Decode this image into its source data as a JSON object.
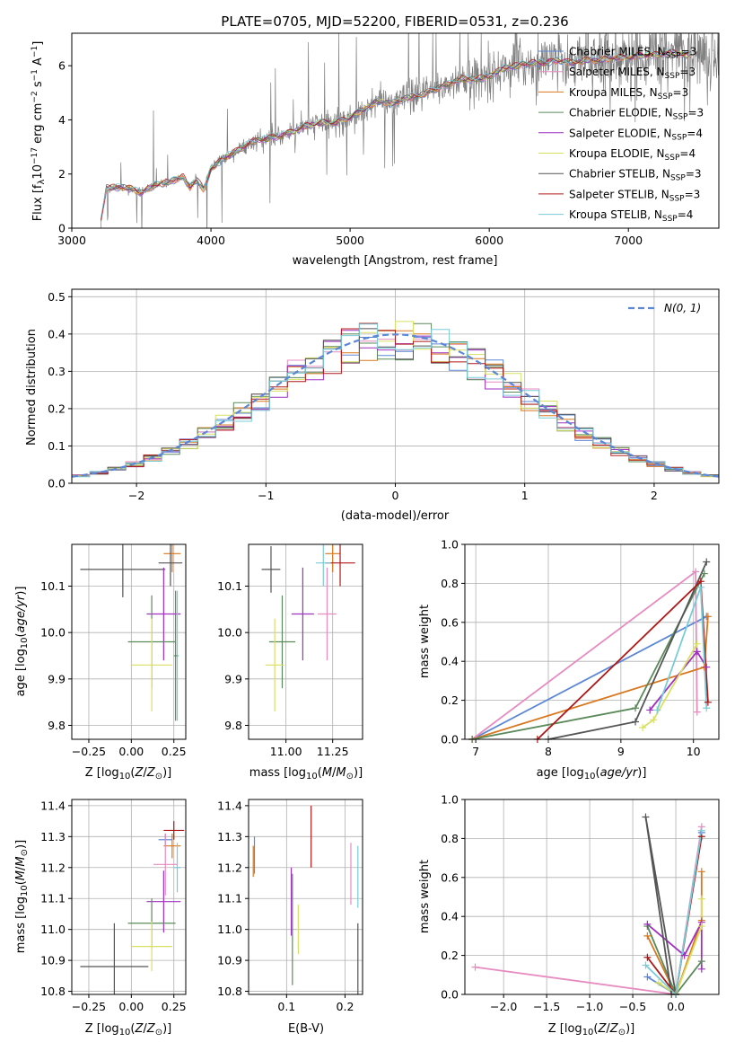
{
  "colors": {
    "chabrier_miles": "#5b87d6",
    "salpeter_miles": "#e68cc0",
    "kroupa_miles": "#d9781e",
    "chabrier_elodie": "#5a8a5a",
    "salpeter_elodie": "#a030c0",
    "kroupa_elodie": "#d8e060",
    "chabrier_stelib": "#555555",
    "salpeter_stelib": "#b01818",
    "kroupa_stelib": "#78ccd8",
    "data": "#7f7f7f",
    "normal": "#5b87d6",
    "grid": "#b0b0b0"
  },
  "chart_data": [
    {
      "id": "spectrum",
      "type": "line",
      "title": "PLATE=0705, MJD=52200, FIBERID=0531, z=0.236",
      "xlabel": "wavelength [Angstrom, rest frame]",
      "ylabel": "Flux [f_λ 10^-17 erg cm^-2 s^-1 A^-1]",
      "xlim": [
        3000,
        7650
      ],
      "ylim": [
        0,
        7.2
      ],
      "xticks": [
        3000,
        4000,
        5000,
        6000,
        7000
      ],
      "yticks": [
        0,
        2,
        4,
        6
      ],
      "grid": false,
      "legend_position": "top-right",
      "legend": [
        "Chabrier MILES, N_SSP=3",
        "Salpeter MILES, N_SSP=3",
        "Kroupa MILES, N_SSP=3",
        "Chabrier ELODIE, N_SSP=3",
        "Salpeter ELODIE, N_SSP=4",
        "Kroupa ELODIE, N_SSP=4",
        "Chabrier STELIB, N_SSP=3",
        "Salpeter STELIB, N_SSP=3",
        "Kroupa STELIB, N_SSP=4"
      ],
      "model_continuum": {
        "x": [
          3200,
          3250,
          3300,
          3400,
          3500,
          3600,
          3700,
          3800,
          3850,
          3900,
          3950,
          4000,
          4100,
          4200,
          4300,
          4400,
          4500,
          4600,
          4700,
          4800,
          4900,
          5000,
          5100,
          5200,
          5300,
          5400,
          5500,
          5600,
          5700,
          5800,
          5900,
          6000,
          6100,
          6200,
          6300,
          6400,
          6500,
          6600,
          6700,
          6800,
          6900,
          7000,
          7100,
          7200,
          7300,
          7400
        ],
        "y": [
          0.0,
          1.5,
          1.5,
          1.5,
          1.3,
          1.6,
          1.7,
          1.9,
          1.5,
          1.8,
          1.4,
          2.2,
          2.6,
          2.9,
          3.2,
          3.3,
          3.4,
          3.6,
          3.8,
          3.9,
          3.9,
          4.1,
          4.4,
          4.7,
          4.6,
          4.8,
          4.9,
          5.1,
          5.3,
          5.5,
          5.5,
          5.6,
          5.9,
          6.0,
          6.1,
          6.1,
          6.2,
          6.1,
          6.2,
          6.2,
          6.3,
          6.3,
          6.4,
          6.4,
          6.5,
          6.4
        ]
      },
      "data_range": [
        3200,
        7650
      ]
    },
    {
      "id": "residuals",
      "type": "histogram",
      "xlabel": "(data-model)/error",
      "ylabel": "Normed distribution",
      "xlim": [
        -2.5,
        2.5
      ],
      "ylim": [
        0,
        0.52
      ],
      "xticks": [
        -2,
        -1,
        0,
        1,
        2
      ],
      "yticks": [
        0.0,
        0.1,
        0.2,
        0.3,
        0.4,
        0.5
      ],
      "grid": true,
      "legend_position": "top-right",
      "legend": [
        "N(0,1)"
      ],
      "bins": 36
    },
    {
      "id": "age_vs_Z",
      "type": "scatter",
      "xlabel": "Z [log10(Z/Z⊙)]",
      "ylabel": "age [log10(age/yr)]",
      "xlim": [
        -0.35,
        0.32
      ],
      "ylim": [
        9.77,
        10.19
      ],
      "xticks": [
        -0.25,
        0.0,
        0.25
      ],
      "yticks": [
        9.8,
        9.9,
        10.0,
        10.1
      ],
      "grid": true,
      "points": [
        {
          "c": "chabrier_stelib",
          "x": -0.05,
          "y": 10.136,
          "xerr": 0.25,
          "yerr": 0.06
        },
        {
          "c": "kroupa_miles",
          "x": 0.24,
          "y": 10.17,
          "xerr": 0.05,
          "yerr": 0.04
        },
        {
          "c": "chabrier_stelib",
          "x": 0.23,
          "y": 10.15,
          "xerr": 0.07,
          "yerr": 0.05
        },
        {
          "c": "salpeter_elodie",
          "x": 0.19,
          "y": 10.04,
          "xerr": 0.1,
          "yerr": 0.1
        },
        {
          "c": "chabrier_elodie",
          "x": 0.12,
          "y": 9.98,
          "xerr": 0.14,
          "yerr": 0.1
        },
        {
          "c": "kroupa_elodie",
          "x": 0.12,
          "y": 9.93,
          "xerr": 0.12,
          "yerr": 0.1
        },
        {
          "c": "kroupa_stelib",
          "x": 0.27,
          "y": 9.95,
          "xerr": 0.01,
          "yerr": 0.14
        },
        {
          "c": "chabrier_elodie",
          "x": 0.26,
          "y": 9.95,
          "xerr": 0.01,
          "yerr": 0.14
        }
      ]
    },
    {
      "id": "age_vs_mass",
      "type": "scatter",
      "xlabel": "mass [log10(M/M⊙)]",
      "ylabel": "",
      "xlim": [
        10.8,
        11.41
      ],
      "ylim": [
        9.77,
        10.19
      ],
      "xticks": [
        11.0,
        11.25
      ],
      "yticks": [
        9.8,
        9.9,
        10.0,
        10.1
      ],
      "grid": true,
      "points": [
        {
          "c": "chabrier_stelib",
          "x": 10.92,
          "y": 10.136,
          "xerr": 0.05,
          "yerr": 0.05
        },
        {
          "c": "kroupa_miles",
          "x": 11.25,
          "y": 10.17,
          "xerr": 0.04,
          "yerr": 0.04
        },
        {
          "c": "salpeter_stelib",
          "x": 11.29,
          "y": 10.15,
          "xerr": 0.08,
          "yerr": 0.05
        },
        {
          "c": "kroupa_stelib",
          "x": 11.2,
          "y": 10.15,
          "xerr": 0.04,
          "yerr": 0.05
        },
        {
          "c": "salpeter_miles",
          "x": 11.22,
          "y": 10.04,
          "xerr": 0.05,
          "yerr": 0.1
        },
        {
          "c": "salpeter_elodie",
          "x": 11.09,
          "y": 10.04,
          "xerr": 0.06,
          "yerr": 0.1
        },
        {
          "c": "chabrier_elodie",
          "x": 10.98,
          "y": 9.98,
          "xerr": 0.07,
          "yerr": 0.1
        },
        {
          "c": "kroupa_elodie",
          "x": 10.94,
          "y": 9.93,
          "xerr": 0.05,
          "yerr": 0.1
        }
      ]
    },
    {
      "id": "weight_vs_age",
      "type": "line",
      "xlabel": "age [log10(age/yr)]",
      "ylabel": "mass weight",
      "xlim": [
        6.85,
        10.35
      ],
      "ylim": [
        0,
        1
      ],
      "xticks": [
        7,
        8,
        9,
        10
      ],
      "yticks": [
        0.0,
        0.2,
        0.4,
        0.6,
        0.8,
        1.0
      ],
      "grid": true,
      "series": [
        {
          "c": "chabrier_miles",
          "x": [
            6.95,
            10.18
          ],
          "y": [
            0.0,
            0.63
          ]
        },
        {
          "c": "salpeter_miles",
          "x": [
            6.95,
            10.03,
            10.05
          ],
          "y": [
            0.0,
            0.86,
            0.14
          ]
        },
        {
          "c": "kroupa_miles",
          "x": [
            6.95,
            10.15,
            10.2
          ],
          "y": [
            0.0,
            0.37,
            0.63
          ]
        },
        {
          "c": "chabrier_elodie",
          "x": [
            6.95,
            9.2,
            10.15
          ],
          "y": [
            0.0,
            0.16,
            0.85
          ]
        },
        {
          "c": "salpeter_elodie",
          "x": [
            9.4,
            10.05,
            10.18
          ],
          "y": [
            0.15,
            0.45,
            0.37
          ]
        },
        {
          "c": "kroupa_elodie",
          "x": [
            9.3,
            9.45,
            10.05
          ],
          "y": [
            0.06,
            0.1,
            0.49
          ]
        },
        {
          "c": "chabrier_stelib",
          "x": [
            8.0,
            9.2,
            10.18
          ],
          "y": [
            0.0,
            0.09,
            0.91
          ]
        },
        {
          "c": "salpeter_stelib",
          "x": [
            7.85,
            10.1,
            10.2
          ],
          "y": [
            0.0,
            0.81,
            0.19
          ]
        },
        {
          "c": "kroupa_stelib",
          "x": [
            9.5,
            10.1,
            10.18
          ],
          "y": [
            0.15,
            0.78,
            0.16
          ]
        }
      ]
    },
    {
      "id": "mass_vs_Z",
      "type": "scatter",
      "xlabel": "Z [log10(Z/Z⊙)]",
      "ylabel": "mass [log10(M/M⊙)]",
      "xlim": [
        -0.35,
        0.32
      ],
      "ylim": [
        10.79,
        11.42
      ],
      "xticks": [
        -0.25,
        0.0,
        0.25
      ],
      "yticks": [
        10.8,
        10.9,
        11.0,
        11.1,
        11.2,
        11.3,
        11.4
      ],
      "grid": true,
      "points": [
        {
          "c": "chabrier_stelib",
          "x": -0.1,
          "y": 10.88,
          "xerr": 0.2,
          "yerr": 0.14
        },
        {
          "c": "salpeter_stelib",
          "x": 0.25,
          "y": 11.32,
          "xerr": 0.06,
          "yerr": 0.03
        },
        {
          "c": "kroupa_miles",
          "x": 0.24,
          "y": 11.27,
          "xerr": 0.05,
          "yerr": 0.04
        },
        {
          "c": "chabrier_miles",
          "x": 0.2,
          "y": 11.29,
          "xerr": 0.04,
          "yerr": 0.02
        },
        {
          "c": "salpeter_miles",
          "x": 0.2,
          "y": 11.21,
          "xerr": 0.07,
          "yerr": 0.1
        },
        {
          "c": "salpeter_elodie",
          "x": 0.19,
          "y": 11.09,
          "xerr": 0.1,
          "yerr": 0.1
        },
        {
          "c": "chabrier_elodie",
          "x": 0.12,
          "y": 11.02,
          "xerr": 0.14,
          "yerr": 0.08
        },
        {
          "c": "kroupa_elodie",
          "x": 0.12,
          "y": 10.945,
          "xerr": 0.12,
          "yerr": 0.08
        },
        {
          "c": "kroupa_stelib",
          "x": 0.27,
          "y": 11.2,
          "xerr": 0.02,
          "yerr": 0.08
        }
      ]
    },
    {
      "id": "mass_vs_ebv",
      "type": "scatter",
      "xlabel": "E(B-V)",
      "ylabel": "",
      "xlim": [
        0.035,
        0.23
      ],
      "ylim": [
        10.79,
        11.42
      ],
      "xticks": [
        0.1,
        0.2
      ],
      "yticks": [
        10.8,
        10.9,
        11.0,
        11.1,
        11.2,
        11.3,
        11.4
      ],
      "grid": true,
      "points": [
        {
          "c": "chabrier_miles",
          "x": 0.045,
          "y": 11.24,
          "xerr": 0.0,
          "yerr": 0.06
        },
        {
          "c": "kroupa_miles",
          "x": 0.043,
          "y": 11.22,
          "xerr": 0.0,
          "yerr": 0.05
        },
        {
          "c": "salpeter_stelib",
          "x": 0.142,
          "y": 11.3,
          "xerr": 0.0,
          "yerr": 0.1
        },
        {
          "c": "salpeter_elodie",
          "x": 0.108,
          "y": 11.09,
          "xerr": 0.0,
          "yerr": 0.11
        },
        {
          "c": "chabrier_elodie",
          "x": 0.11,
          "y": 11.0,
          "xerr": 0.0,
          "yerr": 0.18
        },
        {
          "c": "kroupa_elodie",
          "x": 0.12,
          "y": 11.0,
          "xerr": 0.0,
          "yerr": 0.08
        },
        {
          "c": "salpeter_miles",
          "x": 0.21,
          "y": 11.18,
          "xerr": 0.0,
          "yerr": 0.1
        },
        {
          "c": "kroupa_stelib",
          "x": 0.222,
          "y": 11.17,
          "xerr": 0.0,
          "yerr": 0.1
        },
        {
          "c": "chabrier_stelib",
          "x": 0.222,
          "y": 10.88,
          "xerr": 0.0,
          "yerr": 0.14
        }
      ]
    },
    {
      "id": "weight_vs_Z",
      "type": "line",
      "xlabel": "Z [log10(Z/Z⊙)]",
      "ylabel": "mass weight",
      "xlim": [
        -2.45,
        0.5
      ],
      "ylim": [
        0,
        1
      ],
      "xticks": [
        -2.0,
        -1.5,
        -1.0,
        -0.5,
        0.0
      ],
      "yticks": [
        0.0,
        0.2,
        0.4,
        0.6,
        0.8,
        1.0
      ],
      "grid": true,
      "series": [
        {
          "c": "salpeter_miles",
          "x": [
            -2.33,
            0.0,
            0.3
          ],
          "y": [
            0.14,
            0.0,
            0.86
          ]
        },
        {
          "c": "chabrier_miles",
          "x": [
            -0.33,
            0.0,
            0.3
          ],
          "y": [
            0.09,
            0.0,
            0.83
          ]
        },
        {
          "c": "kroupa_miles",
          "x": [
            -0.33,
            0.0,
            0.3,
            0.3
          ],
          "y": [
            0.3,
            0.0,
            0.38,
            0.63
          ]
        },
        {
          "c": "chabrier_elodie",
          "x": [
            -0.33,
            0.0,
            0.3
          ],
          "y": [
            0.35,
            0.0,
            0.17
          ]
        },
        {
          "c": "salpeter_elodie",
          "x": [
            -0.33,
            0.1,
            0.3,
            0.3
          ],
          "y": [
            0.36,
            0.2,
            0.37,
            0.13
          ]
        },
        {
          "c": "kroupa_elodie",
          "x": [
            -0.2,
            0.0,
            0.3,
            0.3
          ],
          "y": [
            0.06,
            0.0,
            0.35,
            0.49
          ]
        },
        {
          "c": "chabrier_stelib",
          "x": [
            -0.05,
            -0.35,
            0.0
          ],
          "y": [
            0.0,
            0.91,
            0.0
          ]
        },
        {
          "c": "salpeter_stelib",
          "x": [
            -0.33,
            0.0,
            0.3
          ],
          "y": [
            0.19,
            0.0,
            0.81
          ]
        },
        {
          "c": "kroupa_stelib",
          "x": [
            -0.35,
            0.0,
            0.3
          ],
          "y": [
            0.15,
            0.0,
            0.84
          ]
        }
      ]
    }
  ]
}
